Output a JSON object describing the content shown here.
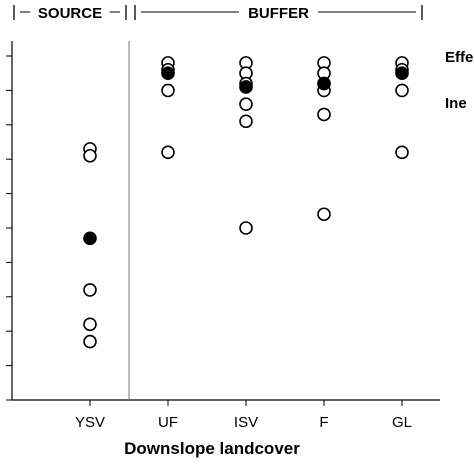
{
  "chart_data": {
    "type": "scatter",
    "xlabel": "Downslope landcover",
    "categories": [
      "YSV",
      "UF",
      "ISV",
      "F",
      "GL"
    ],
    "ylim": [
      0,
      10
    ],
    "groups": [
      {
        "label": "SOURCE",
        "categories": [
          "YSV"
        ]
      },
      {
        "label": "BUFFER",
        "categories": [
          "UF",
          "ISV",
          "F",
          "GL"
        ]
      }
    ],
    "legend": [
      {
        "label": "Effe",
        "marker": "open-circle"
      },
      {
        "label": "Ine",
        "marker": "filled-circle"
      }
    ],
    "series": [
      {
        "marker": "open-circle",
        "points": [
          {
            "x": "YSV",
            "y": 7.3
          },
          {
            "x": "YSV",
            "y": 7.1
          },
          {
            "x": "YSV",
            "y": 3.2
          },
          {
            "x": "YSV",
            "y": 2.2
          },
          {
            "x": "YSV",
            "y": 1.7
          },
          {
            "x": "UF",
            "y": 9.8
          },
          {
            "x": "UF",
            "y": 9.6
          },
          {
            "x": "UF",
            "y": 9.0
          },
          {
            "x": "UF",
            "y": 7.2
          },
          {
            "x": "ISV",
            "y": 9.8
          },
          {
            "x": "ISV",
            "y": 9.5
          },
          {
            "x": "ISV",
            "y": 9.2
          },
          {
            "x": "ISV",
            "y": 8.6
          },
          {
            "x": "ISV",
            "y": 8.1
          },
          {
            "x": "ISV",
            "y": 5.0
          },
          {
            "x": "F",
            "y": 9.8
          },
          {
            "x": "F",
            "y": 9.5
          },
          {
            "x": "F",
            "y": 9.2
          },
          {
            "x": "F",
            "y": 9.0
          },
          {
            "x": "F",
            "y": 8.3
          },
          {
            "x": "F",
            "y": 5.4
          },
          {
            "x": "GL",
            "y": 9.8
          },
          {
            "x": "GL",
            "y": 9.6
          },
          {
            "x": "GL",
            "y": 9.0
          },
          {
            "x": "GL",
            "y": 7.2
          }
        ]
      },
      {
        "marker": "filled-circle",
        "points": [
          {
            "x": "YSV",
            "y": 4.7
          },
          {
            "x": "UF",
            "y": 9.5
          },
          {
            "x": "ISV",
            "y": 9.1
          },
          {
            "x": "F",
            "y": 9.2
          },
          {
            "x": "GL",
            "y": 9.5
          }
        ]
      }
    ]
  }
}
